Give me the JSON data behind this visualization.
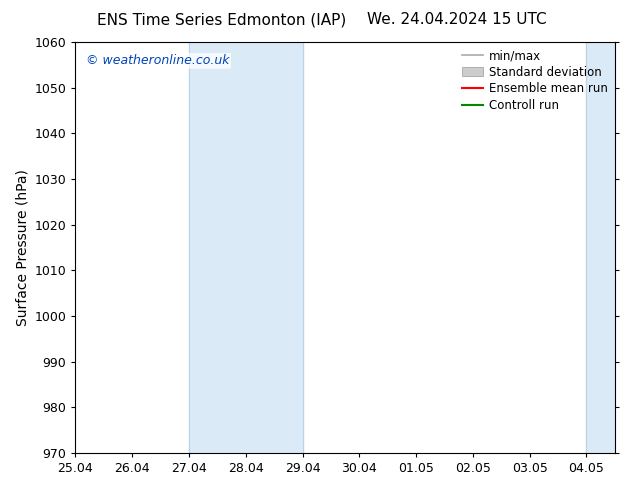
{
  "title_left": "ENS Time Series Edmonton (IAP)",
  "title_right": "We. 24.04.2024 15 UTC",
  "ylabel": "Surface Pressure (hPa)",
  "ylim": [
    970,
    1060
  ],
  "yticks": [
    970,
    980,
    990,
    1000,
    1010,
    1020,
    1030,
    1040,
    1050,
    1060
  ],
  "xlim_start": 0.0,
  "xlim_end": 9.0,
  "xtick_labels": [
    "25.04",
    "26.04",
    "27.04",
    "28.04",
    "29.04",
    "30.04",
    "01.05",
    "02.05",
    "03.05",
    "04.05"
  ],
  "xtick_positions": [
    0,
    1,
    2,
    3,
    4,
    5,
    6,
    7,
    8,
    9
  ],
  "shaded_bands": [
    {
      "xmin": 2.0,
      "xmax": 4.0,
      "color": "#dbeaf7"
    },
    {
      "xmin": 9.0,
      "xmax": 10.0,
      "color": "#dbeaf7"
    }
  ],
  "band_edge_color": "#b8d4e8",
  "watermark": "© weatheronline.co.uk",
  "watermark_color": "#0044bb",
  "background_color": "#ffffff",
  "legend_items": [
    {
      "label": "min/max",
      "color": "#aaaaaa",
      "lw": 1.2,
      "ls": "-"
    },
    {
      "label": "Standard deviation",
      "color": "#cccccc",
      "lw": 5,
      "ls": "-"
    },
    {
      "label": "Ensemble mean run",
      "color": "#ff0000",
      "lw": 1.5,
      "ls": "-"
    },
    {
      "label": "Controll run",
      "color": "#008800",
      "lw": 1.5,
      "ls": "-"
    }
  ],
  "title_fontsize": 11,
  "axis_label_fontsize": 10,
  "tick_fontsize": 9,
  "legend_fontsize": 8.5,
  "watermark_fontsize": 9,
  "fig_width": 6.34,
  "fig_height": 4.9,
  "dpi": 100
}
